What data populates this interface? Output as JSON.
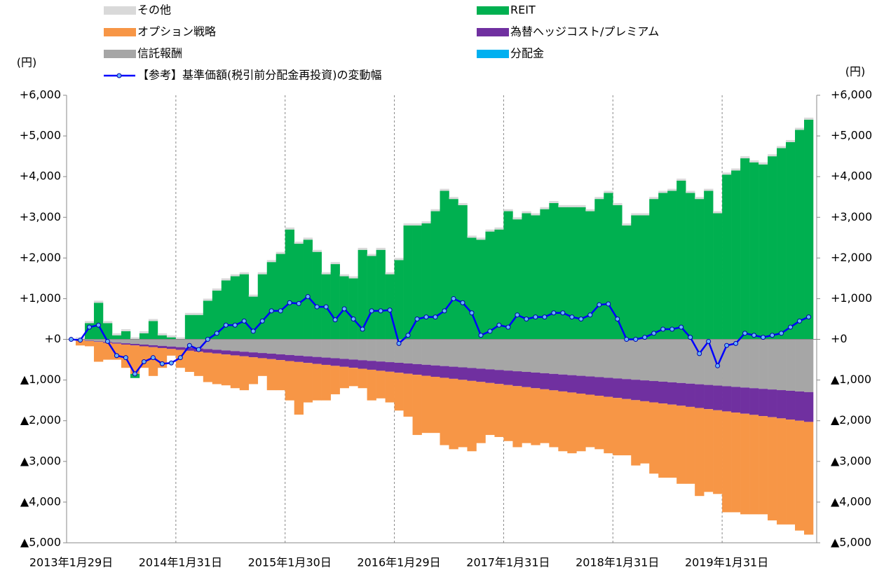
{
  "chart_data": {
    "type": "bar",
    "y_label": "(円)",
    "y2_label": "(円)",
    "ylim": [
      -5000,
      6000
    ],
    "yticks": [
      {
        "value": -5000,
        "label": "▲5,000"
      },
      {
        "value": -4000,
        "label": "▲4,000"
      },
      {
        "value": -3000,
        "label": "▲3,000"
      },
      {
        "value": -2000,
        "label": "▲2,000"
      },
      {
        "value": -1000,
        "label": "▲1,000"
      },
      {
        "value": 0,
        "label": "+0"
      },
      {
        "value": 1000,
        "label": "+1,000"
      },
      {
        "value": 2000,
        "label": "+2,000"
      },
      {
        "value": 3000,
        "label": "+3,000"
      },
      {
        "value": 4000,
        "label": "+4,000"
      },
      {
        "value": 5000,
        "label": "+5,000"
      },
      {
        "value": 6000,
        "label": "+6,000"
      }
    ],
    "y2lim": [
      -5000,
      6000
    ],
    "y2ticks": [
      {
        "value": -5000,
        "label": "▲5,000"
      },
      {
        "value": -4000,
        "label": "▲4,000"
      },
      {
        "value": -3000,
        "label": "▲3,000"
      },
      {
        "value": -2000,
        "label": "▲2,000"
      },
      {
        "value": -1000,
        "label": "▲1,000"
      },
      {
        "value": 0,
        "label": "+0"
      },
      {
        "value": 1000,
        "label": "+1,000"
      },
      {
        "value": 2000,
        "label": "+2,000"
      },
      {
        "value": 3000,
        "label": "+3,000"
      },
      {
        "value": 4000,
        "label": "+4,000"
      },
      {
        "value": 5000,
        "label": "+5,000"
      },
      {
        "value": 6000,
        "label": "+6,000"
      }
    ],
    "negative_tick_color": "#ff0000",
    "stacked": true,
    "categories": [
      "2013年1月29日",
      null,
      null,
      null,
      null,
      null,
      null,
      null,
      null,
      null,
      null,
      null,
      "2014年1月31日",
      null,
      null,
      null,
      null,
      null,
      null,
      null,
      null,
      null,
      null,
      null,
      "2015年1月30日",
      null,
      null,
      null,
      null,
      null,
      null,
      null,
      null,
      null,
      null,
      null,
      "2016年1月29日",
      null,
      null,
      null,
      null,
      null,
      null,
      null,
      null,
      null,
      null,
      null,
      "2017年1月31日",
      null,
      null,
      null,
      null,
      null,
      null,
      null,
      null,
      null,
      null,
      null,
      "2018年1月31日",
      null,
      null,
      null,
      null,
      null,
      null,
      null,
      null,
      null,
      null,
      null,
      "2019年1月31日",
      null,
      null,
      null,
      null,
      null,
      null,
      null,
      null,
      null
    ],
    "series": [
      {
        "name": "その他",
        "color": "#d9d9d9",
        "values": [
          0,
          50,
          50,
          50,
          50,
          50,
          50,
          50,
          50,
          50,
          50,
          50,
          50,
          50,
          50,
          50,
          50,
          50,
          50,
          50,
          50,
          50,
          50,
          50,
          50,
          50,
          50,
          50,
          50,
          50,
          50,
          50,
          50,
          50,
          50,
          50,
          50,
          50,
          50,
          50,
          50,
          50,
          50,
          50,
          50,
          50,
          50,
          50,
          50,
          50,
          50,
          50,
          50,
          50,
          50,
          50,
          50,
          50,
          50,
          50,
          50,
          50,
          50,
          50,
          50,
          50,
          50,
          50,
          50,
          50,
          50,
          50,
          50,
          50,
          50,
          50,
          50,
          50,
          50,
          50,
          50,
          50
        ]
      },
      {
        "name": "REIT",
        "color": "#00b050",
        "values": [
          0,
          0,
          400,
          900,
          400,
          100,
          200,
          -100,
          150,
          450,
          100,
          50,
          0,
          600,
          600,
          950,
          1200,
          1450,
          1550,
          1600,
          1050,
          1600,
          1900,
          2100,
          2700,
          2350,
          2450,
          2150,
          1600,
          1850,
          1550,
          1500,
          2200,
          2050,
          2200,
          1600,
          1950,
          2800,
          2800,
          2850,
          3150,
          3650,
          3450,
          3300,
          2500,
          2450,
          2650,
          2700,
          3150,
          2950,
          3100,
          3050,
          3200,
          3350,
          3250,
          3250,
          3250,
          3150,
          3450,
          3600,
          3300,
          2800,
          3050,
          3050,
          3450,
          3600,
          3650,
          3900,
          3600,
          3450,
          3650,
          3100,
          4050,
          4150,
          4450,
          4350,
          4300,
          4500,
          4700,
          4850,
          5150,
          5400
        ]
      },
      {
        "name": "オプション戦略",
        "color": "#f79646",
        "values": [
          0,
          -129,
          -128,
          -487,
          -415,
          -394,
          -572,
          -701,
          -529,
          -707,
          -485,
          -163,
          -441,
          -519,
          -596,
          -724,
          -751,
          -759,
          -806,
          -833,
          -660,
          -437,
          -764,
          -741,
          -967,
          -1294,
          -970,
          -897,
          -873,
          -699,
          -525,
          -451,
          -477,
          -753,
          -678,
          -754,
          -929,
          -1055,
          -1480,
          -1405,
          -1380,
          -1655,
          -1730,
          -1655,
          -1729,
          -1504,
          -1278,
          -1303,
          -1377,
          -1501,
          -1375,
          -1399,
          -1323,
          -1397,
          -1470,
          -1494,
          -1417,
          -1291,
          -1314,
          -1387,
          -1410,
          -1383,
          -1606,
          -1529,
          -1751,
          -1824,
          -1796,
          -1919,
          -1891,
          -2163,
          -2035,
          -2057,
          -2479,
          -2451,
          -2472,
          -2444,
          -2415,
          -2537,
          -2608,
          -2579,
          -2700,
          -2771
        ]
      },
      {
        "name": "為替ヘッジコスト/プレミアム",
        "color": "#7030a0",
        "values": [
          0,
          -5,
          -10,
          -15,
          -21,
          -26,
          -32,
          -37,
          -43,
          -49,
          -55,
          -61,
          -67,
          -73,
          -80,
          -86,
          -93,
          -99,
          -106,
          -113,
          -120,
          -127,
          -134,
          -141,
          -149,
          -156,
          -164,
          -171,
          -179,
          -187,
          -195,
          -203,
          -211,
          -219,
          -228,
          -236,
          -245,
          -253,
          -262,
          -271,
          -280,
          -289,
          -298,
          -307,
          -317,
          -326,
          -336,
          -345,
          -355,
          -365,
          -375,
          -385,
          -395,
          -405,
          -416,
          -426,
          -437,
          -447,
          -458,
          -469,
          -480,
          -491,
          -502,
          -513,
          -525,
          -536,
          -548,
          -559,
          -571,
          -583,
          -595,
          -607,
          -619,
          -631,
          -644,
          -656,
          -669,
          -681,
          -694,
          -707,
          -720,
          -733
        ]
      },
      {
        "name": "信託報酬",
        "color": "#a6a6a6",
        "values": [
          0,
          -16,
          -32,
          -48,
          -64,
          -80,
          -96,
          -112,
          -128,
          -144,
          -160,
          -176,
          -192,
          -208,
          -224,
          -240,
          -256,
          -272,
          -288,
          -304,
          -320,
          -336,
          -352,
          -368,
          -384,
          -400,
          -416,
          -432,
          -448,
          -464,
          -480,
          -496,
          -512,
          -528,
          -544,
          -560,
          -576,
          -592,
          -608,
          -624,
          -640,
          -656,
          -672,
          -688,
          -704,
          -720,
          -736,
          -752,
          -768,
          -784,
          -800,
          -816,
          -832,
          -848,
          -864,
          -880,
          -896,
          -912,
          -928,
          -944,
          -960,
          -976,
          -992,
          -1008,
          -1024,
          -1040,
          -1056,
          -1072,
          -1088,
          -1104,
          -1120,
          -1136,
          -1152,
          -1168,
          -1184,
          -1200,
          -1216,
          -1232,
          -1248,
          -1264,
          -1280,
          -1296
        ]
      },
      {
        "name": "分配金",
        "color": "#00b0f0",
        "values": [
          0,
          0,
          0,
          0,
          0,
          0,
          0,
          0,
          0,
          0,
          0,
          0,
          0,
          0,
          0,
          0,
          0,
          0,
          0,
          0,
          0,
          0,
          0,
          0,
          0,
          0,
          0,
          0,
          0,
          0,
          0,
          0,
          0,
          0,
          0,
          0,
          0,
          0,
          0,
          0,
          0,
          0,
          0,
          0,
          0,
          0,
          0,
          0,
          0,
          0,
          0,
          0,
          0,
          0,
          0,
          0,
          0,
          0,
          0,
          0,
          0,
          0,
          0,
          0,
          0,
          0,
          0,
          0,
          0,
          0,
          0,
          0,
          0,
          0,
          0,
          0,
          0,
          0,
          0,
          0,
          0,
          0
        ]
      },
      {
        "name": "【参考】基準価額(税引前分配金再投資)の変動幅",
        "type": "line",
        "color": "#0000ff",
        "marker_fill": "#66b3ff",
        "values": [
          0,
          -20,
          300,
          350,
          -50,
          -400,
          -450,
          -850,
          -550,
          -450,
          -600,
          -580,
          -450,
          -150,
          -250,
          0,
          150,
          350,
          350,
          450,
          200,
          450,
          700,
          700,
          900,
          880,
          1050,
          800,
          800,
          480,
          750,
          500,
          250,
          700,
          700,
          720,
          -100,
          100,
          500,
          550,
          550,
          700,
          1000,
          900,
          650,
          100,
          200,
          350,
          300,
          600,
          500,
          550,
          550,
          650,
          650,
          550,
          500,
          600,
          850,
          870,
          500,
          0,
          0,
          50,
          150,
          250,
          250,
          300,
          50,
          -350,
          -50,
          -650,
          -150,
          -100,
          150,
          100,
          50,
          100,
          150,
          300,
          450,
          550
        ]
      }
    ]
  }
}
